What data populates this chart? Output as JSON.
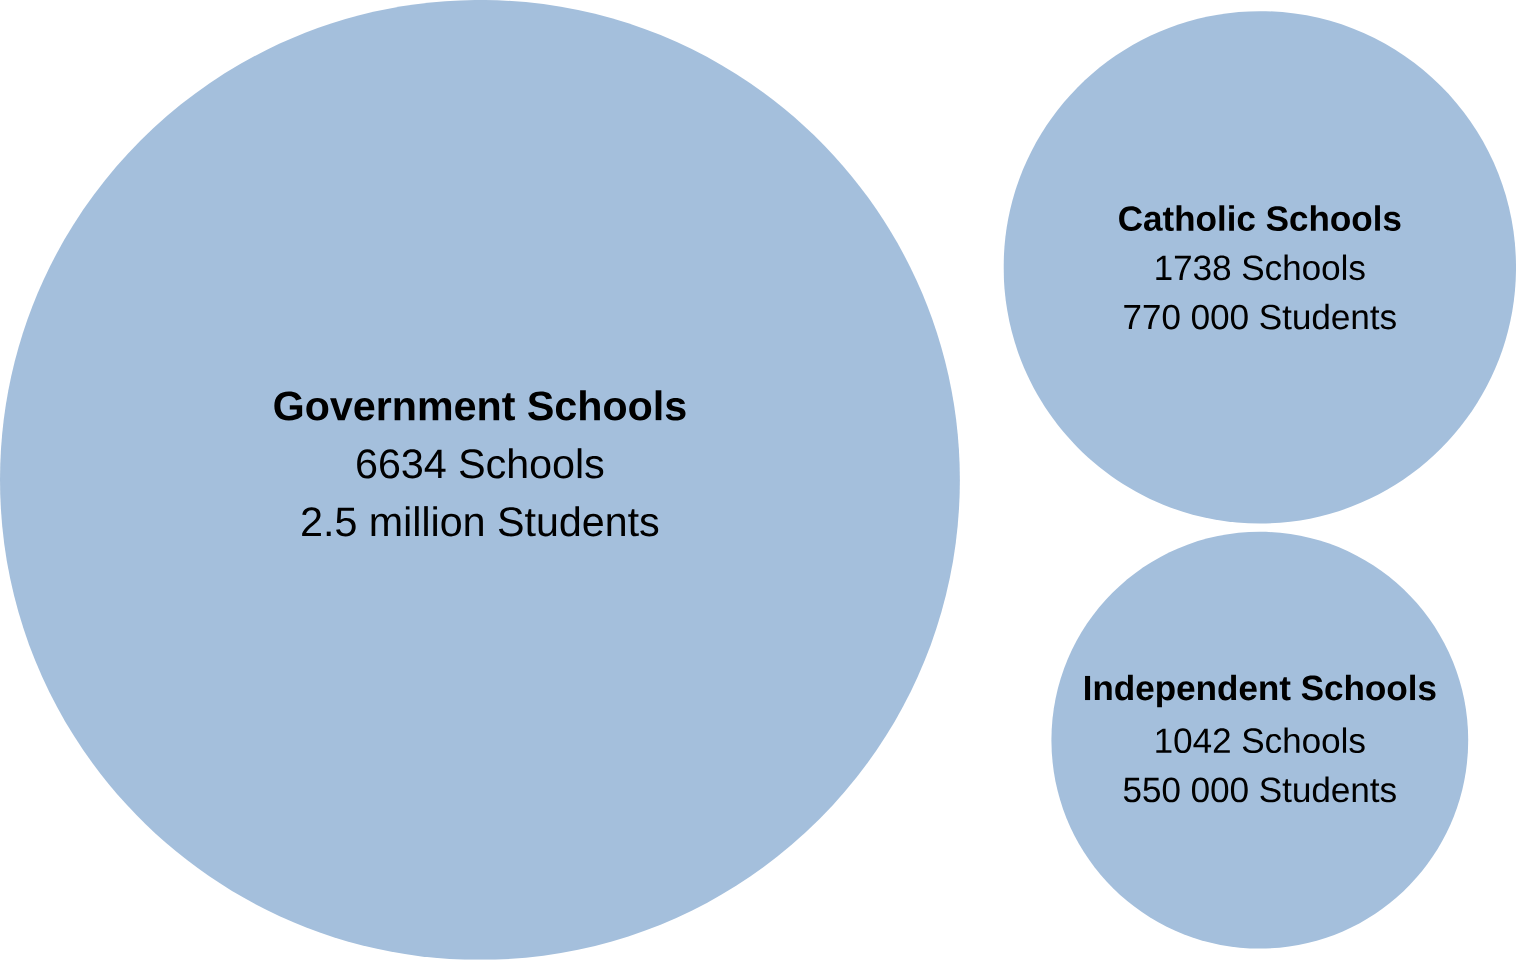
{
  "chart_data": {
    "type": "other",
    "categories": [
      "Government Schools",
      "Catholic Schools",
      "Independent Schools"
    ],
    "series": [
      {
        "values": [
          6634,
          1738,
          1042
        ],
        "value_labels": [
          "6634 Schools",
          "1738 Schools",
          "1042 Schools"
        ]
      },
      {
        "values": [
          2500000,
          770000,
          550000
        ],
        "value_labels": [
          "2.5 million Students",
          "770 000 Students",
          "550 000 Students"
        ]
      }
    ],
    "color": "#a4bfdc"
  }
}
